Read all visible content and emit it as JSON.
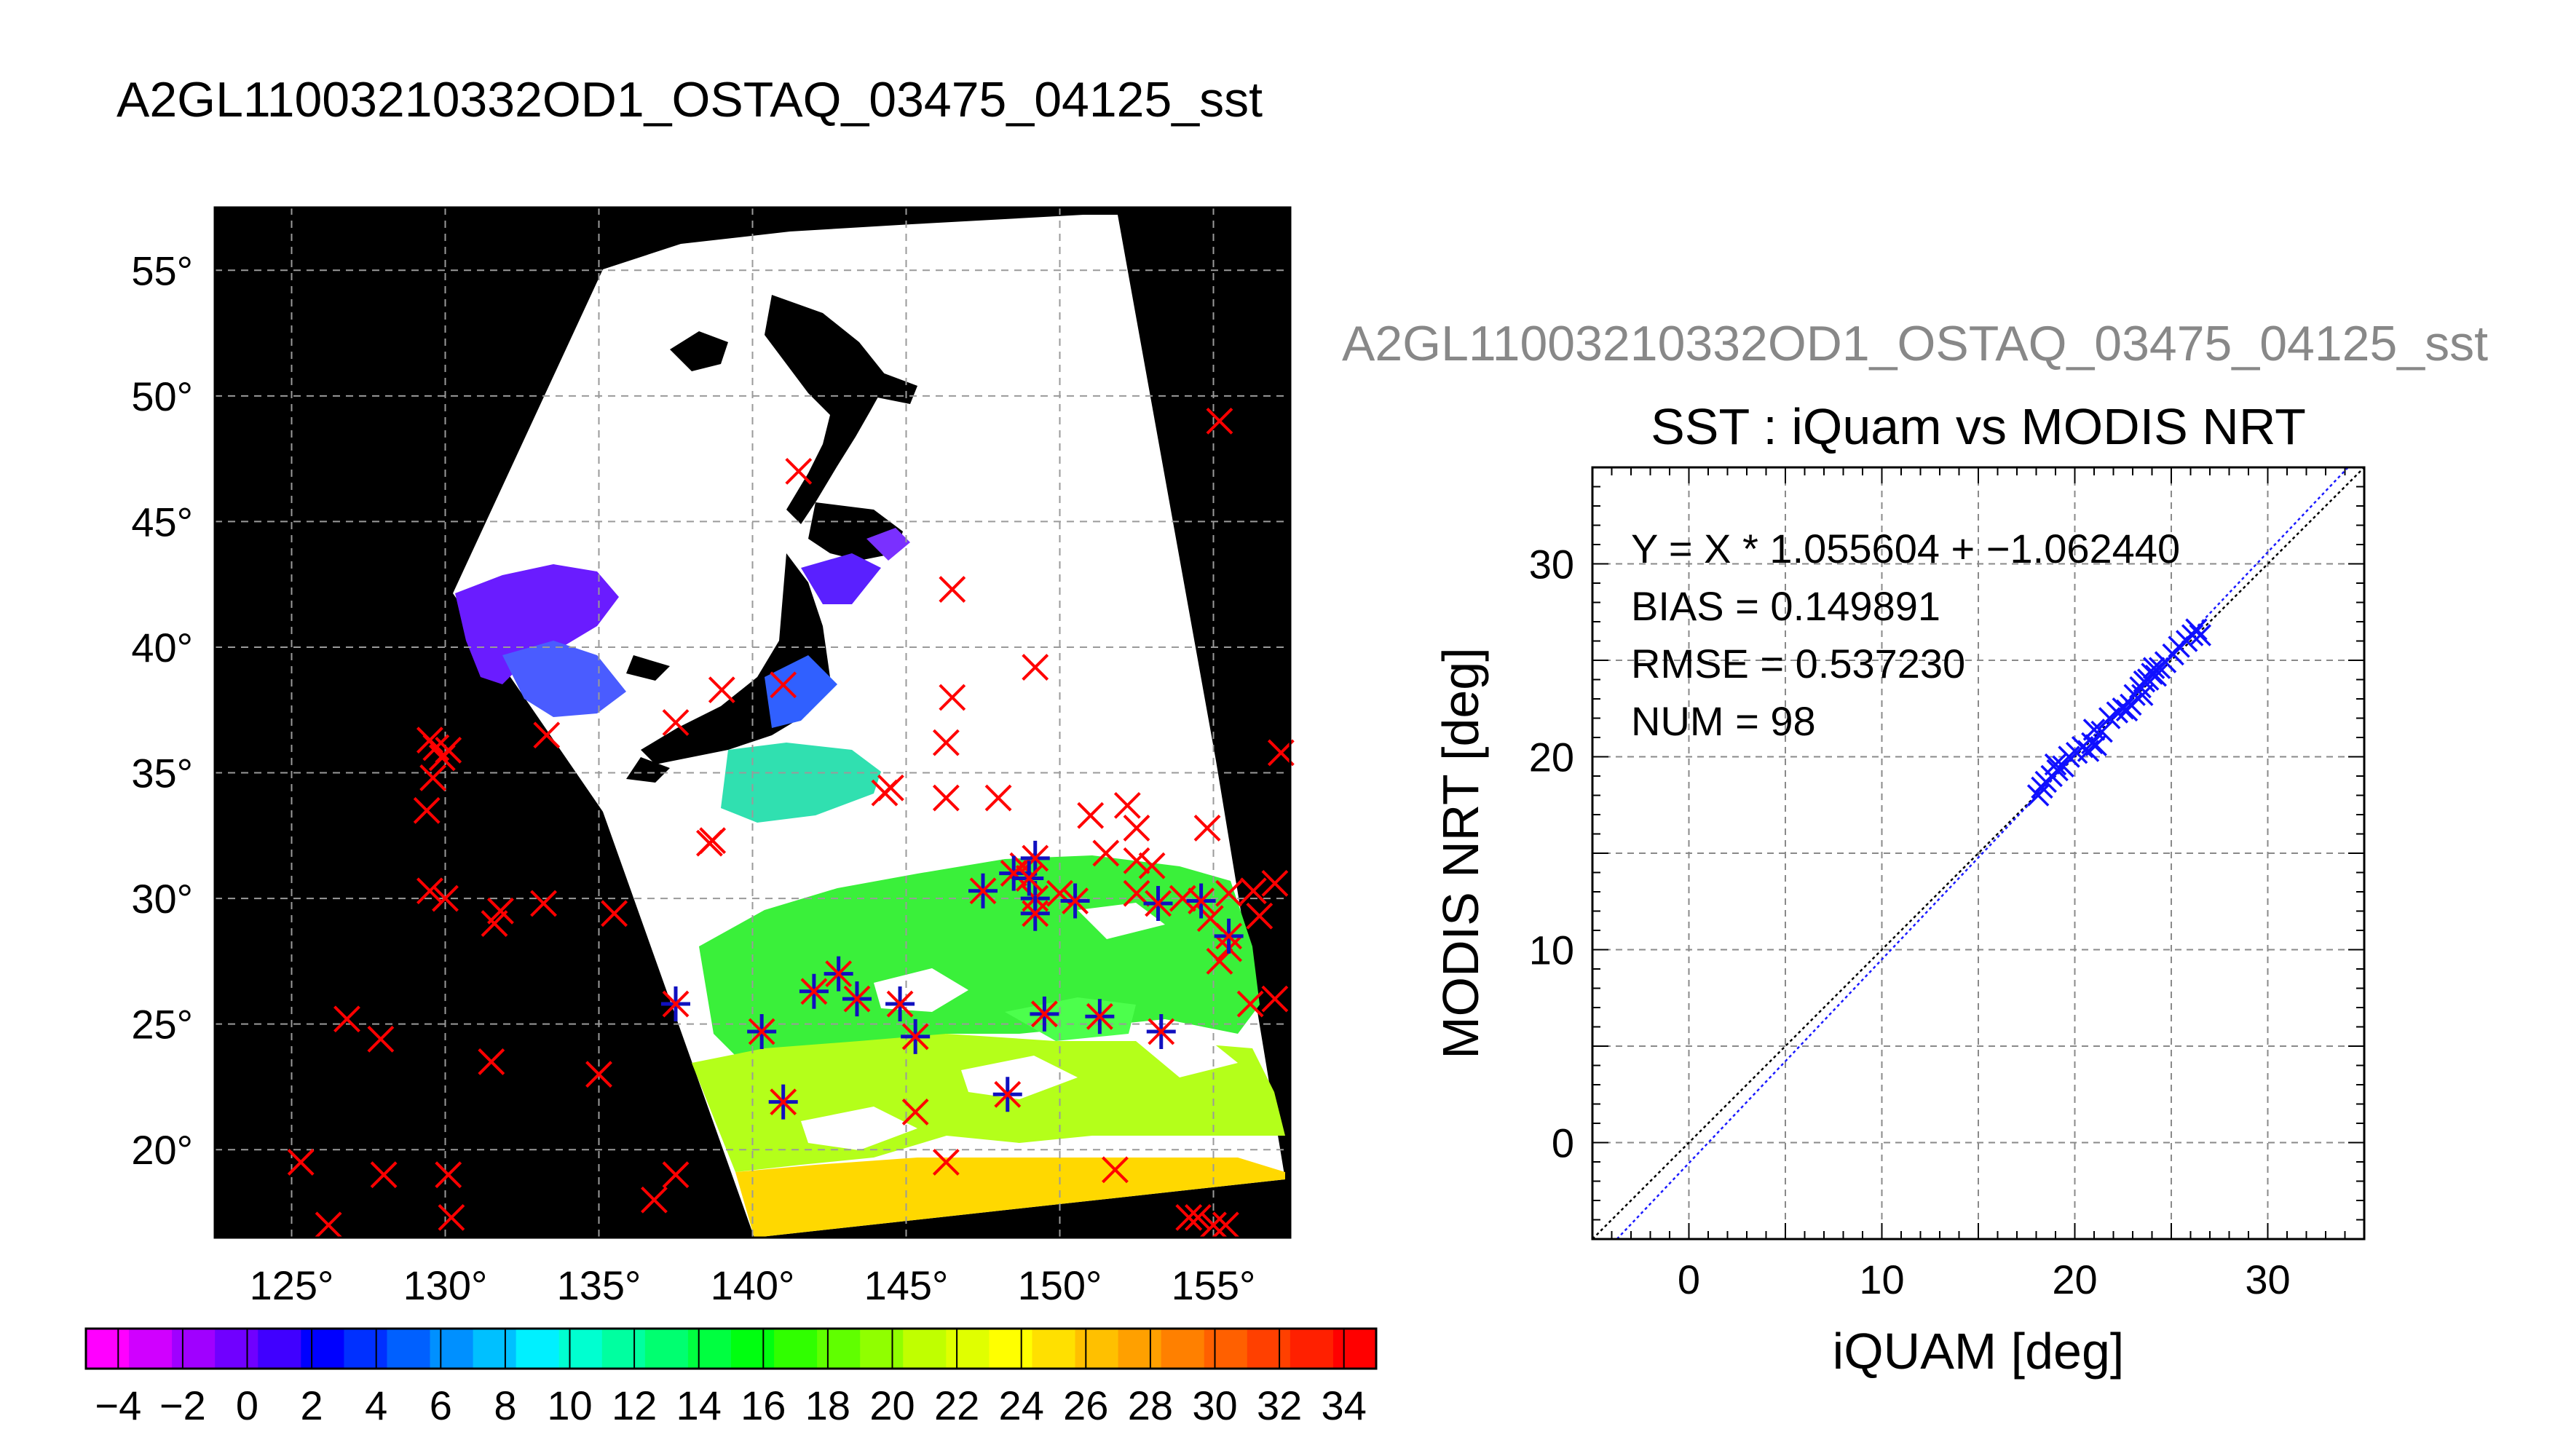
{
  "map_title": "A2GL11003210332OD1_OSTAQ_03475_04125_sst",
  "scatter_supertitle": "A2GL11003210332OD1_OSTAQ_03475_04125_sst",
  "chart_data": [
    {
      "type": "map",
      "lon_ticks": [
        "125°",
        "130°",
        "135°",
        "140°",
        "145°",
        "150°",
        "155°"
      ],
      "lat_ticks": [
        "55°",
        "50°",
        "45°",
        "40°",
        "35°",
        "30°",
        "25°",
        "20°"
      ],
      "lon_values": [
        125,
        130,
        135,
        140,
        145,
        150,
        155
      ],
      "lat_values": [
        55,
        50,
        45,
        40,
        35,
        30,
        25,
        20
      ],
      "xlim": [
        122.5,
        157.5
      ],
      "ylim": [
        16.5,
        57.5
      ],
      "grid": true,
      "colorbar": {
        "ticks": [
          "−4",
          "−2",
          "0",
          "2",
          "4",
          "6",
          "8",
          "10",
          "12",
          "14",
          "16",
          "18",
          "20",
          "22",
          "24",
          "26",
          "28",
          "30",
          "32",
          "34"
        ],
        "range": [
          -5,
          35
        ],
        "colors": [
          "#ff00ff",
          "#d000ff",
          "#a000ff",
          "#7000ff",
          "#4000ff",
          "#0000ff",
          "#0030ff",
          "#0060ff",
          "#0090ff",
          "#00c0ff",
          "#00f0ff",
          "#00ffd0",
          "#00ffa0",
          "#00ff70",
          "#00ff40",
          "#00ff10",
          "#30ff00",
          "#60ff00",
          "#90ff00",
          "#c0ff00",
          "#e0ff00",
          "#ffff00",
          "#ffe000",
          "#ffc000",
          "#ffa000",
          "#ff8000",
          "#ff6000",
          "#ff4000",
          "#ff2000",
          "#ff0000"
        ]
      },
      "matchups_red": [
        [
          155.2,
          49.0
        ],
        [
          141.5,
          47.0
        ],
        [
          146.5,
          42.3
        ],
        [
          149.2,
          39.2
        ],
        [
          146.5,
          38.0
        ],
        [
          141.0,
          38.5
        ],
        [
          139.0,
          38.3
        ],
        [
          137.5,
          37.0
        ],
        [
          133.3,
          36.5
        ],
        [
          146.3,
          36.2
        ],
        [
          144.5,
          34.4
        ],
        [
          144.3,
          34.2
        ],
        [
          146.3,
          34.0
        ],
        [
          148.0,
          34.0
        ],
        [
          138.6,
          32.2
        ],
        [
          138.7,
          32.3
        ],
        [
          151.0,
          33.3
        ],
        [
          152.2,
          33.7
        ],
        [
          152.5,
          32.8
        ],
        [
          154.8,
          32.8
        ],
        [
          151.5,
          31.8
        ],
        [
          152.5,
          31.5
        ],
        [
          153.0,
          31.3
        ],
        [
          148.8,
          31.3
        ],
        [
          150.0,
          30.2
        ],
        [
          152.5,
          30.2
        ],
        [
          154.0,
          30.0
        ],
        [
          155.5,
          30.2
        ],
        [
          156.3,
          30.3
        ],
        [
          154.9,
          29.2
        ],
        [
          155.5,
          28.0
        ],
        [
          155.2,
          27.5
        ],
        [
          156.2,
          25.8
        ],
        [
          157.0,
          26.0
        ],
        [
          156.5,
          29.3
        ],
        [
          157.0,
          30.6
        ],
        [
          157.2,
          35.8
        ],
        [
          129.5,
          36.3
        ],
        [
          129.7,
          36.0
        ],
        [
          130.1,
          35.9
        ],
        [
          129.9,
          35.6
        ],
        [
          129.6,
          34.8
        ],
        [
          129.4,
          33.5
        ],
        [
          129.5,
          30.3
        ],
        [
          130.0,
          30.0
        ],
        [
          131.8,
          29.5
        ],
        [
          131.6,
          29.0
        ],
        [
          133.2,
          29.8
        ],
        [
          135.5,
          29.4
        ],
        [
          126.8,
          25.2
        ],
        [
          127.9,
          24.4
        ],
        [
          131.5,
          23.5
        ],
        [
          135.0,
          23.0
        ],
        [
          125.3,
          19.5
        ],
        [
          128.0,
          19.0
        ],
        [
          130.1,
          19.0
        ],
        [
          126.2,
          17.0
        ],
        [
          130.2,
          17.3
        ],
        [
          137.5,
          19.0
        ],
        [
          136.8,
          18.0
        ],
        [
          145.3,
          21.5
        ],
        [
          146.3,
          19.5
        ],
        [
          151.8,
          19.2
        ],
        [
          154.5,
          17.3
        ],
        [
          155.0,
          17.0
        ],
        [
          154.2,
          17.3
        ],
        [
          155.4,
          17.0
        ]
      ],
      "matchups_used": [
        [
          137.5,
          25.8
        ],
        [
          140.3,
          24.7
        ],
        [
          141.0,
          21.9
        ],
        [
          142.0,
          26.3
        ],
        [
          142.8,
          27.0
        ],
        [
          143.4,
          26.0
        ],
        [
          144.8,
          25.8
        ],
        [
          145.3,
          24.5
        ],
        [
          147.5,
          30.3
        ],
        [
          148.5,
          31.0
        ],
        [
          149.2,
          31.6
        ],
        [
          149.2,
          30.0
        ],
        [
          149.2,
          29.4
        ],
        [
          150.5,
          29.9
        ],
        [
          149.5,
          25.4
        ],
        [
          148.3,
          22.2
        ],
        [
          151.3,
          25.3
        ],
        [
          153.3,
          24.7
        ],
        [
          153.2,
          29.8
        ],
        [
          154.6,
          29.9
        ],
        [
          155.5,
          28.5
        ],
        [
          149.0,
          30.8
        ]
      ]
    },
    {
      "type": "scatter",
      "title": "SST : iQuam vs MODIS NRT",
      "xlabel": "iQUAM [deg]",
      "ylabel": "MODIS NRT [deg]",
      "xlim": [
        -5,
        35
      ],
      "ylim": [
        -5,
        35
      ],
      "x_ticks": [
        "0",
        "10",
        "20",
        "30"
      ],
      "y_ticks": [
        "0",
        "10",
        "20",
        "30"
      ],
      "x_tick_values": [
        0,
        10,
        20,
        30
      ],
      "y_tick_values": [
        0,
        10,
        20,
        30
      ],
      "grid": true,
      "stats": [
        "Y = X * 1.055604 + −1.062440",
        "BIAS = 0.149891",
        "RMSE = 0.537230",
        "NUM = 98"
      ],
      "fit": {
        "slope": 1.055604,
        "intercept": -1.06244
      },
      "points": [
        [
          18.1,
          18.0
        ],
        [
          18.3,
          18.4
        ],
        [
          18.5,
          18.7
        ],
        [
          18.8,
          19.0
        ],
        [
          19.1,
          19.3
        ],
        [
          19.4,
          19.5
        ],
        [
          19.7,
          20.0
        ],
        [
          20.1,
          20.2
        ],
        [
          20.4,
          20.5
        ],
        [
          20.7,
          20.3
        ],
        [
          20.9,
          20.7
        ],
        [
          21.1,
          20.6
        ],
        [
          21.4,
          21.3
        ],
        [
          21.8,
          22.0
        ],
        [
          22.2,
          22.3
        ],
        [
          22.5,
          22.5
        ],
        [
          22.7,
          22.4
        ],
        [
          22.9,
          22.7
        ],
        [
          23.1,
          23.2
        ],
        [
          23.4,
          23.6
        ],
        [
          23.6,
          23.9
        ],
        [
          23.8,
          24.0
        ],
        [
          24.0,
          24.3
        ],
        [
          24.2,
          24.2
        ],
        [
          24.4,
          24.6
        ],
        [
          24.7,
          24.9
        ],
        [
          25.1,
          25.3
        ],
        [
          25.4,
          25.7
        ],
        [
          25.8,
          26.0
        ],
        [
          26.1,
          26.3
        ],
        [
          26.3,
          26.6
        ],
        [
          26.5,
          26.3
        ],
        [
          19.0,
          19.6
        ],
        [
          21.0,
          21.4
        ],
        [
          23.5,
          23.2
        ],
        [
          24.1,
          24.6
        ]
      ]
    }
  ]
}
